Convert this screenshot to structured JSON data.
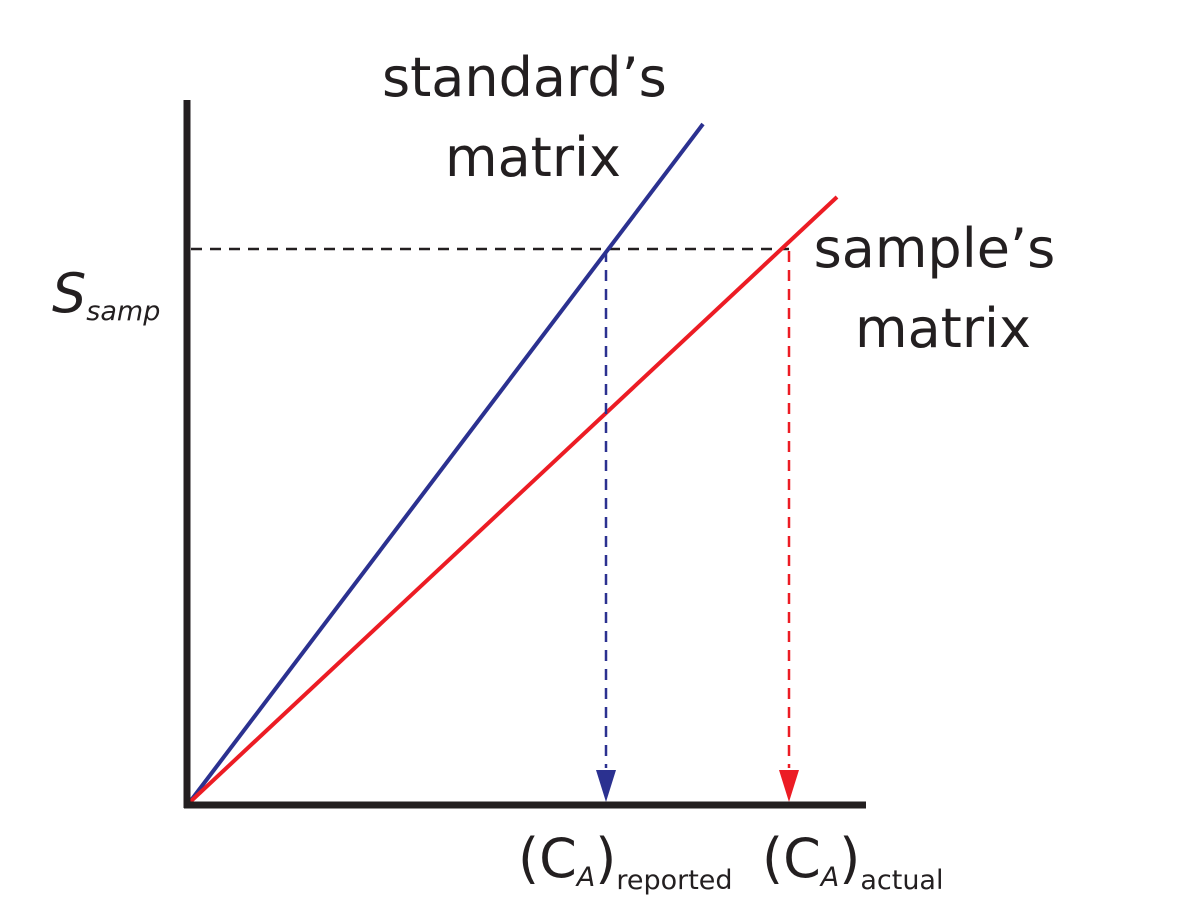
{
  "colors": {
    "axes": "#231f20",
    "standard": "#2b3190",
    "sample": "#ec1c24",
    "guide": "#231f20",
    "background": "#ffffff"
  },
  "y_axis": {
    "label_main": "S",
    "label_sub": "samp"
  },
  "lines": {
    "standard": {
      "label_line1": "standard’s",
      "label_line2": "matrix"
    },
    "sample": {
      "label_line1": "sample’s",
      "label_line2": "matrix"
    }
  },
  "x_axis": {
    "reported": {
      "open": "(C",
      "sub1": "A",
      "close": ")",
      "sub2": "reported"
    },
    "actual": {
      "open": "(C",
      "sub1": "A",
      "close": ")",
      "sub2": "actual"
    }
  }
}
